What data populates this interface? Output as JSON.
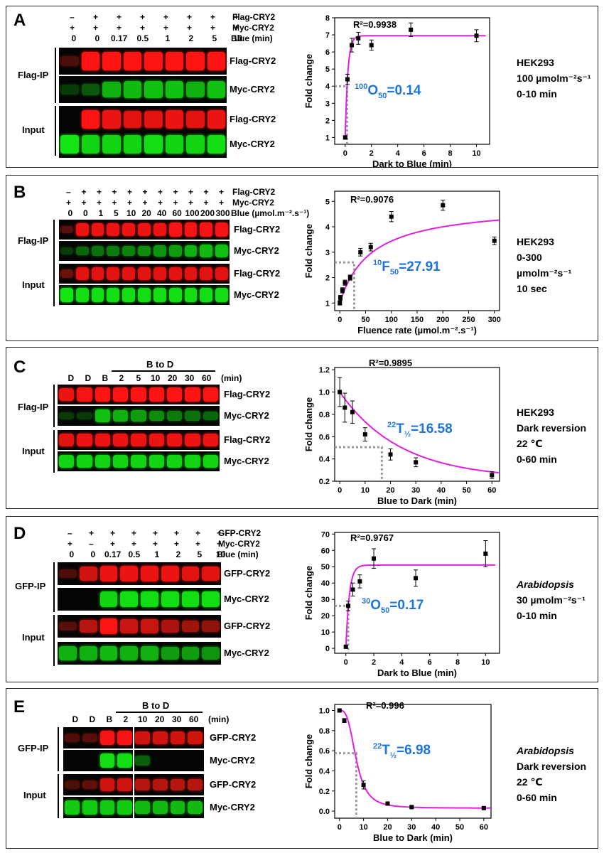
{
  "panels": [
    {
      "id": "A",
      "rows": [
        {
          "signs": [
            "–",
            "+",
            "+",
            "+",
            "+",
            "+",
            "+",
            "+"
          ],
          "label": "Flag-CRY2"
        },
        {
          "signs": [
            "+",
            "+",
            "+",
            "+",
            "+",
            "+",
            "+",
            "+"
          ],
          "label": "Myc-CRY2"
        }
      ],
      "times": [
        "0",
        "0",
        "0.17",
        "0.5",
        "1",
        "2",
        "5",
        "10"
      ],
      "times_unit": "Blue (min)",
      "groups": [
        "Flag-IP",
        "Input"
      ],
      "blot_labels": [
        "Flag-CRY2",
        "Myc-CRY2",
        "Flag-CRY2",
        "Myc-CRY2"
      ],
      "side": [
        "HEK293",
        "100 µmolm⁻²s⁻¹",
        "0-10 min"
      ],
      "side_italic_first": false,
      "chart": {
        "type": "scatter",
        "r2": "R²=0.9938",
        "annot_sup": "100",
        "annot_letter": "O",
        "annot_sub": "50",
        "annot_value": "=0.14",
        "xlabel": "Dark to Blue (min)",
        "ylabel": "Fold change",
        "xticks": [
          "0",
          "2",
          "4",
          "6",
          "8",
          "10"
        ],
        "yticks": [
          "1",
          "2",
          "3",
          "4",
          "5",
          "6",
          "7",
          "8"
        ],
        "xlim": [
          -0.8,
          11
        ],
        "ylim": [
          0.6,
          8
        ],
        "x": [
          0,
          0.17,
          0.5,
          1,
          2,
          5,
          10
        ],
        "y": [
          1.0,
          4.4,
          6.4,
          6.8,
          6.4,
          7.3,
          6.95
        ],
        "err": [
          0.1,
          0.3,
          0.4,
          0.35,
          0.3,
          0.4,
          0.35
        ],
        "fit": {
          "kind": "rise",
          "y0": 1,
          "ymax": 6.95,
          "half": 0.14
        },
        "guide": {
          "x": 0.14,
          "y": 4.0
        },
        "fit_color": "#e020e0",
        "annot_color": "#1e74d8"
      }
    },
    {
      "id": "B",
      "rows": [
        {
          "signs": [
            "–",
            "+",
            "+",
            "+",
            "+",
            "+",
            "+",
            "+",
            "+",
            "+",
            "+"
          ],
          "label": "Flag-CRY2"
        },
        {
          "signs": [
            "+",
            "+",
            "+",
            "+",
            "+",
            "+",
            "+",
            "+",
            "+",
            "+",
            "+"
          ],
          "label": "Myc-CRY2"
        }
      ],
      "times": [
        "0",
        "0",
        "1",
        "5",
        "10",
        "20",
        "40",
        "60",
        "100",
        "200",
        "300"
      ],
      "times_unit": "Blue (µmol.m⁻².s⁻¹)",
      "groups": [
        "Flag-IP",
        "Input"
      ],
      "blot_labels": [
        "Flag-CRY2",
        "Myc-CRY2",
        "Flag-CRY2",
        "Myc-CRY2"
      ],
      "side": [
        "HEK293",
        "0-300 µmolm⁻²s⁻¹",
        "10 sec"
      ],
      "side_italic_first": false,
      "chart": {
        "type": "scatter",
        "r2": "R²=0.9076",
        "annot_sup": "10",
        "annot_letter": "F",
        "annot_sub": "50",
        "annot_value": "=27.91",
        "xlabel": "Fluence rate (µmol.m⁻².s⁻¹)",
        "ylabel": "Fold change",
        "xticks": [
          "0",
          "50",
          "100",
          "150",
          "200",
          "250",
          "300"
        ],
        "yticks": [
          "1",
          "2",
          "3",
          "4",
          "5"
        ],
        "xlim": [
          -10,
          310
        ],
        "ylim": [
          0.7,
          5.4
        ],
        "x": [
          0,
          1,
          5,
          10,
          20,
          40,
          60,
          100,
          200,
          300
        ],
        "y": [
          1.0,
          1.2,
          1.5,
          1.8,
          2.0,
          3.0,
          3.2,
          4.4,
          4.85,
          3.45
        ],
        "err": [
          0.08,
          0.1,
          0.1,
          0.1,
          0.1,
          0.15,
          0.15,
          0.2,
          0.2,
          0.15
        ],
        "fit": {
          "kind": "sat",
          "y0": 1,
          "ymax": 4.9,
          "half": 60
        },
        "guide": {
          "x": 27.91,
          "y": 2.6
        },
        "fit_color": "#e020e0",
        "annot_color": "#1e74d8"
      }
    },
    {
      "id": "C",
      "header": {
        "lanes": [
          "D",
          "D",
          "B",
          "2",
          "5",
          "10",
          "20",
          "30",
          "60"
        ],
        "unit": "(min)",
        "bracket": "B to D"
      },
      "groups": [
        "Flag-IP",
        "Input"
      ],
      "blot_labels": [
        "Flag-CRY2",
        "Myc-CRY2",
        "Flag-CRY2",
        "Myc-CRY2"
      ],
      "side": [
        "HEK293",
        "Dark reversion",
        "22 ℃",
        "0-60 min"
      ],
      "side_italic_first": false,
      "chart": {
        "type": "scatter",
        "r2": "R²=0.9895",
        "annot_sup": "22",
        "annot_letter": "T",
        "annot_sub": "½",
        "annot_value": "=16.58",
        "xlabel": "Blue to Dark (min)",
        "ylabel": "Fold change",
        "xticks": [
          "0",
          "10",
          "20",
          "30",
          "40",
          "50",
          "60"
        ],
        "yticks": [
          "0.2",
          "0.4",
          "0.6",
          "0.8",
          "1.0",
          "1.2"
        ],
        "xlim": [
          -2,
          63
        ],
        "ylim": [
          0.2,
          1.22
        ],
        "x": [
          0,
          2,
          5,
          10,
          20,
          30,
          60
        ],
        "y": [
          1.0,
          0.86,
          0.82,
          0.62,
          0.44,
          0.37,
          0.255
        ],
        "err": [
          0.13,
          0.13,
          0.1,
          0.06,
          0.05,
          0.04,
          0.03
        ],
        "fit": {
          "kind": "decay",
          "top": 1.0,
          "plateau": 0.22,
          "half": 16.58
        },
        "guide": {
          "x": 16.58,
          "y": 0.505
        },
        "fit_color": "#e020e0",
        "annot_color": "#1e74d8"
      }
    },
    {
      "id": "D",
      "rows": [
        {
          "signs": [
            "–",
            "+",
            "+",
            "+",
            "+",
            "+",
            "+",
            "+"
          ],
          "label": "GFP-CRY2"
        },
        {
          "signs": [
            "+",
            "–",
            "+",
            "+",
            "+",
            "+",
            "+",
            "+"
          ],
          "label": "Myc-CRY2"
        }
      ],
      "times": [
        "0",
        "0",
        "0.17",
        "0.5",
        "1",
        "2",
        "5",
        "10"
      ],
      "times_unit": "Blue (min)",
      "groups": [
        "GFP-IP",
        "Input"
      ],
      "blot_labels": [
        "GFP-CRY2",
        "Myc-CRY2",
        "GFP-CRY2",
        "Myc-CRY2"
      ],
      "side": [
        "Arabidopsis",
        "30 µmolm⁻²s⁻¹",
        "0-10 min"
      ],
      "side_italic_first": true,
      "chart": {
        "type": "scatter",
        "r2": "R²=0.9767",
        "annot_sup": "30",
        "annot_letter": "O",
        "annot_sub": "50",
        "annot_value": "=0.17",
        "xlabel": "Dark to Blue (min)",
        "ylabel": "Fold change",
        "xticks": [
          "0",
          "2",
          "4",
          "6",
          "8",
          "10"
        ],
        "yticks": [
          "0",
          "10",
          "20",
          "30",
          "40",
          "50",
          "60",
          "70"
        ],
        "xlim": [
          -0.8,
          11
        ],
        "ylim": [
          -3,
          71
        ],
        "x": [
          0,
          0.17,
          0.5,
          1,
          2,
          5,
          10
        ],
        "y": [
          1,
          26,
          36,
          41,
          55,
          43,
          58
        ],
        "err": [
          1,
          3,
          4,
          4,
          6,
          5,
          8
        ],
        "fit": {
          "kind": "rise",
          "y0": 0,
          "ymax": 51,
          "half": 0.17
        },
        "guide": {
          "x": 0.17,
          "y": 26
        },
        "fit_color": "#e020e0",
        "annot_color": "#1e74d8"
      }
    },
    {
      "id": "E",
      "header": {
        "lanes": [
          "D",
          "D",
          "B",
          "2",
          "10",
          "20",
          "30",
          "60"
        ],
        "unit": "(min)",
        "bracket": "B to D"
      },
      "groups": [
        "GFP-IP",
        "Input"
      ],
      "blot_labels": [
        "GFP-CRY2",
        "Myc-CRY2",
        "GFP-CRY2",
        "Myc-CRY2"
      ],
      "side": [
        "Arabidopsis",
        "Dark reversion",
        "22 ℃",
        "0-60 min"
      ],
      "side_italic_first": true,
      "chart": {
        "type": "scatter",
        "r2": "R²=0.996",
        "annot_sup": "22",
        "annot_letter": "T",
        "annot_sub": "½",
        "annot_value": "=6.98",
        "xlabel": "Blue to Dark (min)",
        "ylabel": "Fold change",
        "xticks": [
          "0",
          "10",
          "20",
          "30",
          "40",
          "50",
          "60"
        ],
        "yticks": [
          "0.0",
          "0.2",
          "0.4",
          "0.6",
          "0.8",
          "1.0"
        ],
        "xlim": [
          -2,
          63
        ],
        "ylim": [
          -0.07,
          1.06
        ],
        "x": [
          0,
          2,
          10,
          20,
          30,
          60
        ],
        "y": [
          1.0,
          0.9,
          0.26,
          0.075,
          0.04,
          0.03
        ],
        "err": [
          0.01,
          0.02,
          0.04,
          0.01,
          0.01,
          0.01
        ],
        "fit": {
          "kind": "sig",
          "top": 1.0,
          "bottom": 0.03,
          "half": 6.98,
          "hill": 3.2
        },
        "guide": {
          "x": 6.98,
          "y": 0.575
        },
        "fit_color": "#e020e0",
        "annot_color": "#1e74d8"
      }
    }
  ]
}
